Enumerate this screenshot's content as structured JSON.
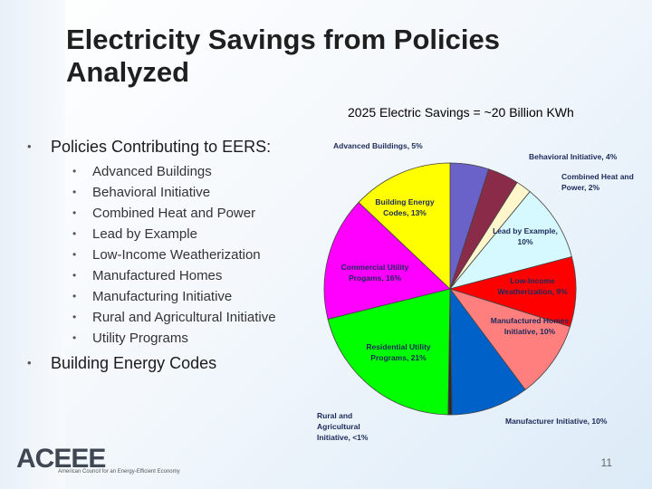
{
  "slide": {
    "title": "Electricity Savings from Policies Analyzed",
    "page_number": "11"
  },
  "bullets": {
    "item1": "Policies Contributing to EERS:",
    "subitems": [
      "Advanced Buildings",
      "Behavioral Initiative",
      "Combined Heat and Power",
      "Lead by Example",
      "Low-Income Weatherization",
      "Manufactured Homes",
      "Manufacturing Initiative",
      "Rural and Agricultural Initiative",
      "Utility Programs"
    ],
    "item2": "Building Energy Codes"
  },
  "logo": {
    "text": "ACEEE",
    "tagline": "American Council for an Energy-Efficient Economy"
  },
  "chart_data": {
    "type": "pie",
    "title": "2025 Electric Savings = ~20 Billion KWh",
    "slices": [
      {
        "label": "Advanced Buildings, 5%",
        "value": 5,
        "color": "#6a62c8"
      },
      {
        "label": "Behavioral Initiative, 4%",
        "value": 4,
        "color": "#8b2b4a"
      },
      {
        "label": "Combined Heat and Power, 2%",
        "value": 2,
        "color": "#fff6cc"
      },
      {
        "label": "Lead by Example, 10%",
        "value": 10,
        "color": "#d6f8ff"
      },
      {
        "label": "Low-Income Weatherization, 9%",
        "value": 9,
        "color": "#ff0000"
      },
      {
        "label": "Manufactured Homes Initiative, 10%",
        "value": 10,
        "color": "#ff7f7f"
      },
      {
        "label": "Manufacturer Initiative, 10%",
        "value": 10,
        "color": "#0061c8"
      },
      {
        "label": "Rural and Agricultural Initiative, <1%",
        "value": 0.5,
        "color": "#2a2a2a"
      },
      {
        "label": "Residential Utility Programs, 21%",
        "value": 21,
        "color": "#00ff00"
      },
      {
        "label": "Commercial Utility Progams, 16%",
        "value": 16,
        "color": "#ff00ff"
      },
      {
        "label": "Building Energy Codes, 13%",
        "value": 13,
        "color": "#ffff00"
      }
    ]
  }
}
